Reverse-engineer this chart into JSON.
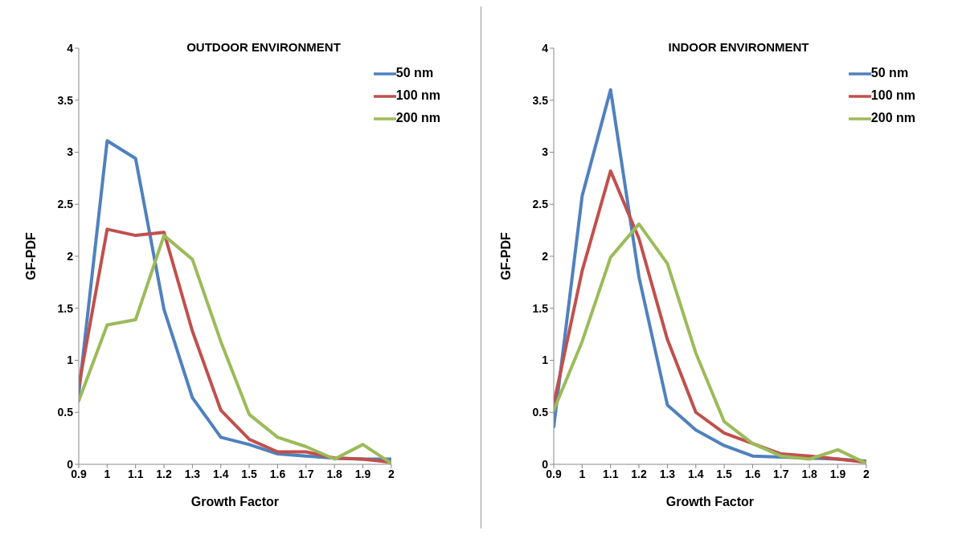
{
  "chart_data": [
    {
      "type": "line",
      "title": "OUTDOOR ENVIRONMENT",
      "xlabel": "Growth Factor",
      "ylabel": "GF-PDF",
      "x": [
        0.9,
        1,
        1.1,
        1.2,
        1.3,
        1.4,
        1.5,
        1.6,
        1.7,
        1.8,
        1.9,
        2
      ],
      "xlim": [
        0.9,
        2
      ],
      "xticks": [
        0.9,
        1,
        1.1,
        1.2,
        1.3,
        1.4,
        1.5,
        1.6,
        1.7,
        1.8,
        1.9,
        2
      ],
      "ylim": [
        0,
        4
      ],
      "yticks": [
        0,
        0.5,
        1,
        1.5,
        2,
        2.5,
        3,
        3.5,
        4
      ],
      "grid": false,
      "legend": "top right",
      "marker": "none",
      "line_style": "solid",
      "series": [
        {
          "name": "50 nm",
          "color": "#4f81bd",
          "values": [
            0.68,
            3.11,
            2.94,
            1.49,
            0.64,
            0.26,
            0.19,
            0.1,
            0.08,
            0.06,
            0.05,
            0.05
          ]
        },
        {
          "name": "100 nm",
          "color": "#c0504d",
          "values": [
            0.75,
            2.26,
            2.2,
            2.23,
            1.28,
            0.52,
            0.24,
            0.12,
            0.12,
            0.06,
            0.05,
            0.02
          ]
        },
        {
          "name": "200 nm",
          "color": "#9bbb59",
          "values": [
            0.61,
            1.34,
            1.39,
            2.2,
            1.97,
            1.18,
            0.48,
            0.26,
            0.17,
            0.05,
            0.19,
            0.01
          ]
        }
      ]
    },
    {
      "type": "line",
      "title": "INDOOR ENVIRONMENT",
      "xlabel": "Growth Factor",
      "ylabel": "GF-PDF",
      "x": [
        0.9,
        1,
        1.1,
        1.2,
        1.3,
        1.4,
        1.5,
        1.6,
        1.7,
        1.8,
        1.9,
        2
      ],
      "xlim": [
        0.9,
        2
      ],
      "xticks": [
        0.9,
        1,
        1.1,
        1.2,
        1.3,
        1.4,
        1.5,
        1.6,
        1.7,
        1.8,
        1.9,
        2
      ],
      "ylim": [
        0,
        4
      ],
      "yticks": [
        0,
        0.5,
        1,
        1.5,
        2,
        2.5,
        3,
        3.5,
        4
      ],
      "grid": false,
      "legend": "top right",
      "marker": "none",
      "line_style": "solid",
      "series": [
        {
          "name": "50 nm",
          "color": "#4f81bd",
          "values": [
            0.36,
            2.58,
            3.6,
            1.8,
            0.57,
            0.33,
            0.18,
            0.08,
            0.07,
            0.06,
            0.05,
            0.03
          ]
        },
        {
          "name": "100 nm",
          "color": "#c0504d",
          "values": [
            0.58,
            1.86,
            2.82,
            2.17,
            1.2,
            0.5,
            0.3,
            0.2,
            0.1,
            0.08,
            0.05,
            0.02
          ]
        },
        {
          "name": "200 nm",
          "color": "#9bbb59",
          "values": [
            0.52,
            1.18,
            1.99,
            2.31,
            1.93,
            1.07,
            0.41,
            0.2,
            0.08,
            0.05,
            0.14,
            0.01
          ]
        }
      ]
    }
  ]
}
